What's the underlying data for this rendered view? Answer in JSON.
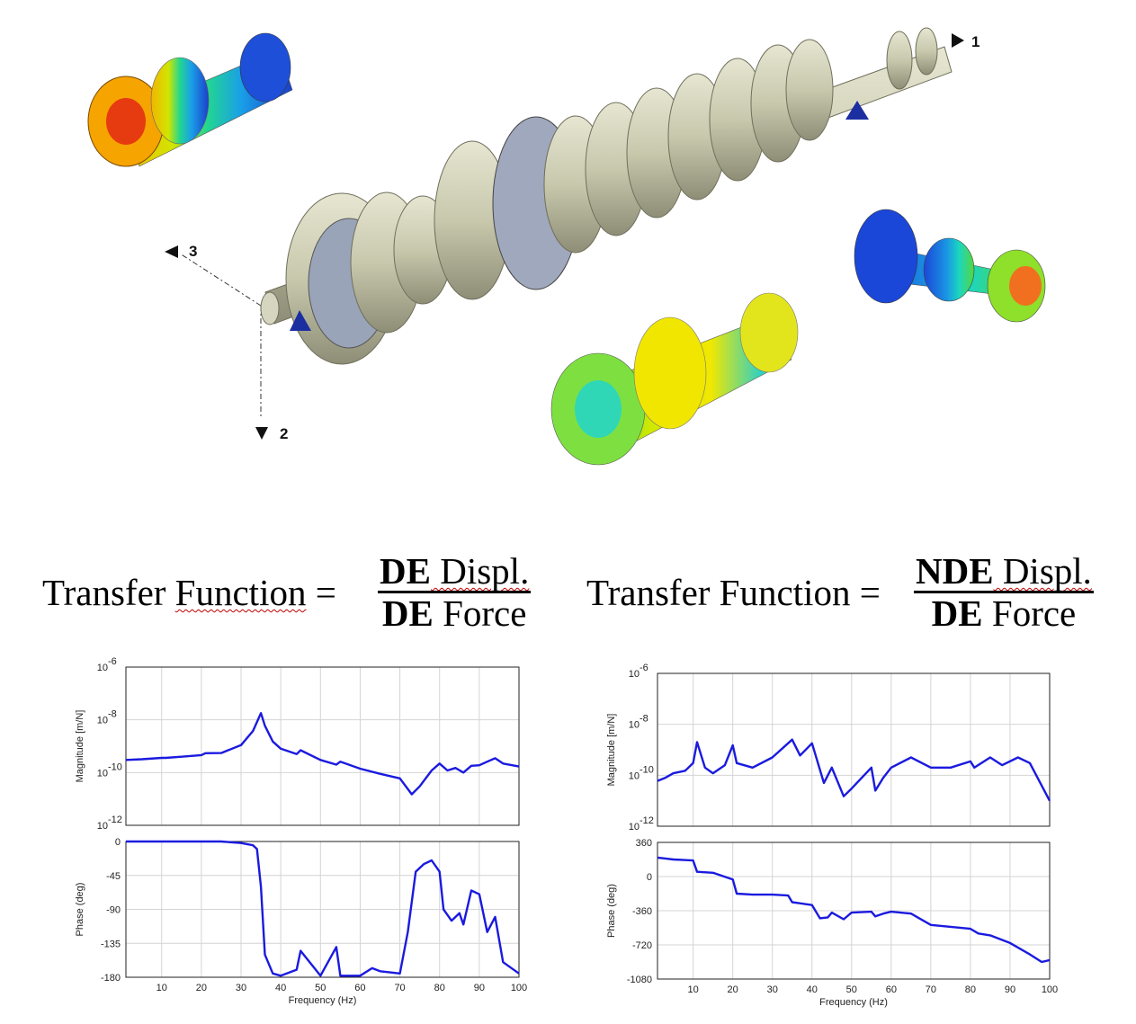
{
  "axis_markers": {
    "a1": "1",
    "a2": "2",
    "a3": "3"
  },
  "equations": [
    {
      "lhs_1": "Transfer ",
      "lhs_2": "Function",
      "lhs_3": " =",
      "num_bold": "DE",
      "num_rest": " Displ.",
      "den_bold": "DE",
      "den_rest": " Force"
    },
    {
      "lhs_1": "Transfer Function =",
      "num_bold": "NDE",
      "num_rest": " Displ.",
      "den_bold": "DE",
      "den_rest": " Force"
    }
  ],
  "plots": {
    "xlabel": "Frequency  (Hz)",
    "mag_ylabel": "Magnitude [m/N]",
    "phase_ylabel": "Phase (deg)",
    "x_ticks": [
      "10",
      "20",
      "30",
      "40",
      "50",
      "60",
      "70",
      "80",
      "90",
      "100"
    ],
    "mag_ticks": [
      {
        "base": "10",
        "exp": "-6"
      },
      {
        "base": "10",
        "exp": "-8"
      },
      {
        "base": "10",
        "exp": "-10"
      },
      {
        "base": "10",
        "exp": "-12"
      }
    ],
    "left_phase_ticks": [
      "0",
      "-45",
      "-90",
      "-135",
      "-180"
    ],
    "right_phase_ticks": [
      "360",
      "0",
      "-360",
      "-720",
      "-1080"
    ],
    "line_color": "#1a1adf"
  },
  "chart_data": [
    {
      "type": "line",
      "title": "",
      "xlabel": "Frequency  (Hz)",
      "ylabel": "Magnitude [m/N]",
      "scale": "log",
      "xlim": [
        1,
        100
      ],
      "ylim": [
        1e-12,
        1e-06
      ],
      "grid": true,
      "series": [
        {
          "x": [
            1,
            5,
            10,
            11,
            15,
            20,
            21,
            25,
            30,
            33,
            35,
            36,
            38,
            40,
            44,
            45,
            50,
            54,
            55,
            60,
            65,
            70,
            73,
            75,
            78,
            80,
            82,
            84,
            86,
            88,
            90,
            92,
            94,
            96,
            100
          ],
          "values": [
            3e-10,
            3.2e-10,
            3.6e-10,
            3.6e-10,
            4e-10,
            4.6e-10,
            5.4e-10,
            5.5e-10,
            1.1e-09,
            3.8e-09,
            1.8e-08,
            6e-09,
            1.5e-09,
            8e-10,
            5e-10,
            7e-10,
            3e-10,
            2e-10,
            2.6e-10,
            1.4e-10,
            9e-11,
            6e-11,
            1.5e-11,
            3e-11,
            1.2e-10,
            2.2e-10,
            1.2e-10,
            1.5e-10,
            1e-10,
            1.8e-10,
            1.9e-10,
            2.6e-10,
            3.5e-10,
            2.2e-10,
            1.7e-10
          ]
        }
      ]
    },
    {
      "type": "line",
      "title": "",
      "xlabel": "Frequency  (Hz)",
      "ylabel": "Phase (deg)",
      "xlim": [
        1,
        100
      ],
      "ylim": [
        -180,
        0
      ],
      "grid": true,
      "series": [
        {
          "x": [
            1,
            5,
            10,
            20,
            25,
            30,
            33,
            34,
            35,
            36,
            38,
            40,
            44,
            45,
            50,
            54,
            55,
            60,
            63,
            65,
            70,
            72,
            74,
            76,
            78,
            80,
            81,
            83,
            85,
            86,
            88,
            90,
            92,
            94,
            96,
            100
          ],
          "values": [
            0,
            0,
            0,
            0,
            0,
            -2,
            -5,
            -10,
            -60,
            -150,
            -175,
            -178,
            -170,
            -145,
            -178,
            -140,
            -178,
            -178,
            -168,
            -172,
            -175,
            -120,
            -40,
            -30,
            -25,
            -40,
            -90,
            -105,
            -95,
            -110,
            -65,
            -70,
            -120,
            -100,
            -160,
            -175
          ]
        }
      ]
    },
    {
      "type": "line",
      "title": "",
      "xlabel": "Frequency  (Hz)",
      "ylabel": "Magnitude [m/N]",
      "scale": "log",
      "xlim": [
        1,
        100
      ],
      "ylim": [
        1e-12,
        1e-06
      ],
      "grid": true,
      "series": [
        {
          "x": [
            1,
            3,
            5,
            8,
            10,
            11,
            13,
            15,
            18,
            20,
            21,
            25,
            30,
            35,
            37,
            40,
            43,
            45,
            48,
            50,
            55,
            56,
            58,
            60,
            65,
            70,
            75,
            80,
            81,
            85,
            88,
            92,
            95,
            100
          ],
          "values": [
            6e-11,
            8e-11,
            1.2e-10,
            1.5e-10,
            3e-10,
            2e-09,
            2e-10,
            1.2e-10,
            2.5e-10,
            1.5e-09,
            3e-10,
            2e-10,
            5e-10,
            2.5e-09,
            6e-10,
            1.8e-09,
            5e-11,
            2e-10,
            1.5e-11,
            3e-11,
            2e-10,
            2.5e-11,
            8e-11,
            2e-10,
            5e-10,
            2e-10,
            2e-10,
            3.5e-10,
            2e-10,
            5e-10,
            2.5e-10,
            5e-10,
            3e-10,
            1e-11
          ]
        }
      ]
    },
    {
      "type": "line",
      "title": "",
      "xlabel": "Frequency  (Hz)",
      "ylabel": "Phase (deg)",
      "xlim": [
        1,
        100
      ],
      "ylim": [
        -1080,
        360
      ],
      "grid": true,
      "series": [
        {
          "x": [
            1,
            3,
            5,
            10,
            11,
            15,
            20,
            21,
            25,
            30,
            34,
            35,
            40,
            42,
            44,
            45,
            48,
            50,
            55,
            56,
            58,
            60,
            65,
            70,
            75,
            80,
            82,
            85,
            90,
            95,
            98,
            100
          ],
          "values": [
            200,
            190,
            180,
            170,
            50,
            40,
            -30,
            -180,
            -190,
            -190,
            -200,
            -270,
            -300,
            -440,
            -430,
            -380,
            -450,
            -380,
            -370,
            -420,
            -390,
            -370,
            -390,
            -510,
            -530,
            -550,
            -600,
            -620,
            -700,
            -820,
            -900,
            -880
          ]
        }
      ]
    }
  ]
}
